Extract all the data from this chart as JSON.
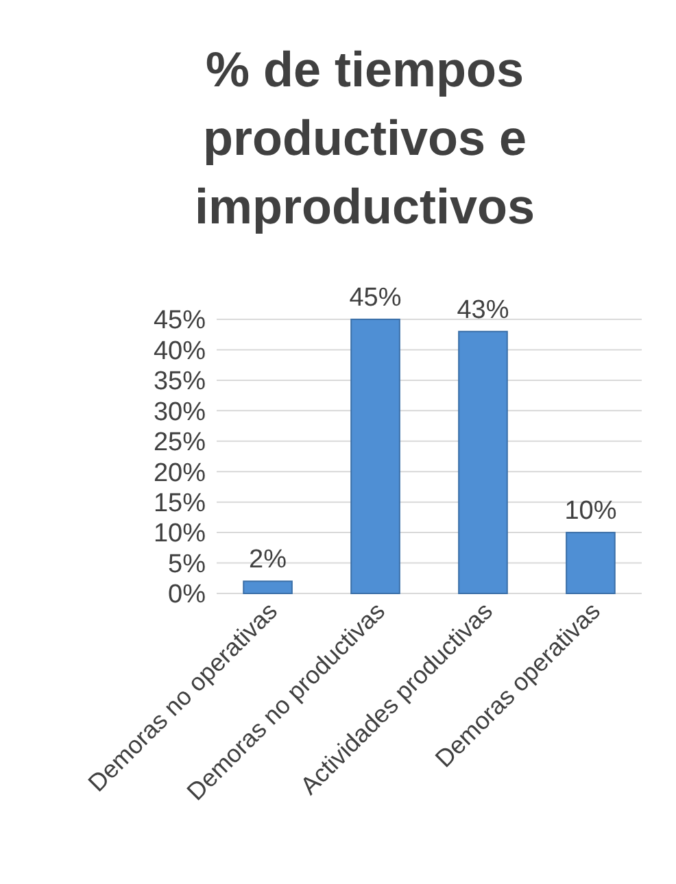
{
  "chart_data": {
    "type": "bar",
    "title": "% de tiempos productivos e improductivos",
    "categories": [
      "Demoras no operativas",
      "Demoras no productivas",
      "Actividades productivas",
      "Demoras operativas"
    ],
    "values": [
      2,
      45,
      43,
      10
    ],
    "color": "#4f8fd4",
    "value_labels": [
      "2%",
      "45%",
      "43%",
      "10%"
    ],
    "ylim": [
      0,
      45
    ],
    "yticks": [
      {
        "value": 0,
        "label": "0%"
      },
      {
        "value": 5,
        "label": "5%"
      },
      {
        "value": 10,
        "label": "10%"
      },
      {
        "value": 15,
        "label": "15%"
      },
      {
        "value": 20,
        "label": "20%"
      },
      {
        "value": 25,
        "label": "25%"
      },
      {
        "value": 30,
        "label": "30%"
      },
      {
        "value": 35,
        "label": "35%"
      },
      {
        "value": 40,
        "label": "40%"
      },
      {
        "value": 45,
        "label": "45%"
      }
    ],
    "grid": "y"
  }
}
